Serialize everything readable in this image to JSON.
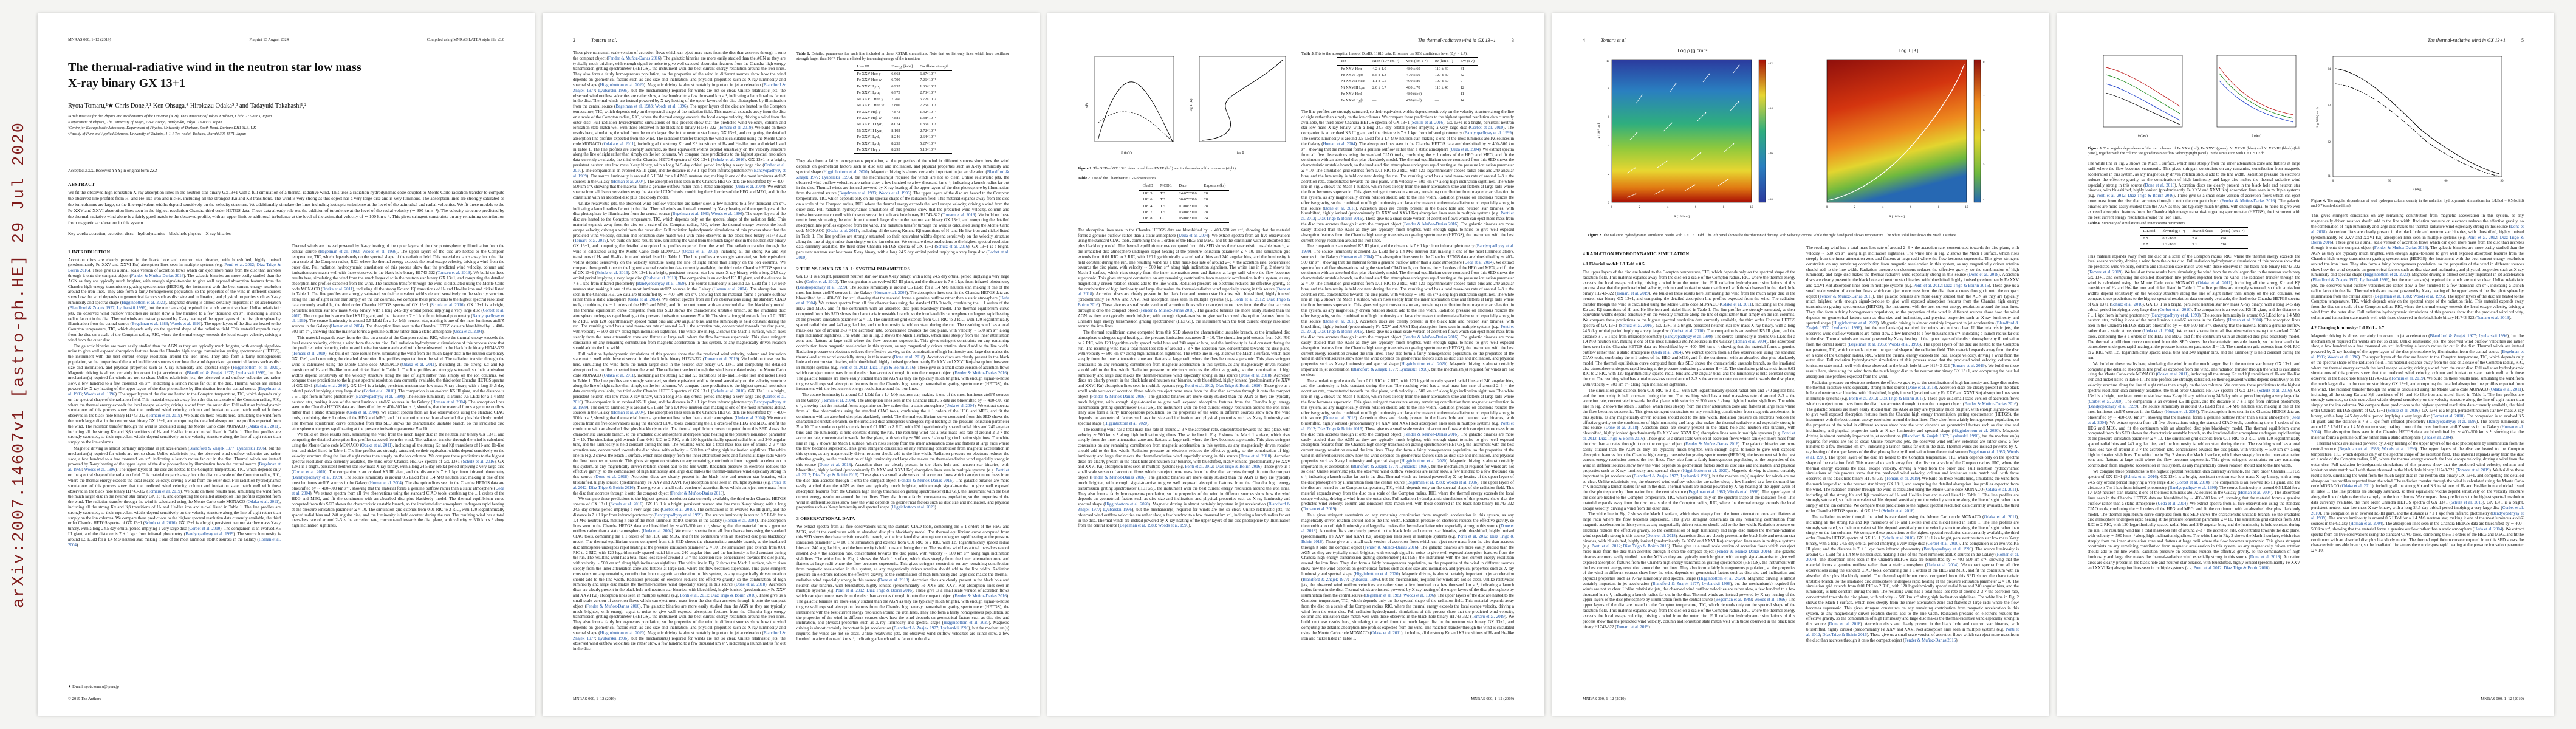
{
  "arxiv": {
    "stamp": "arXiv:2007.14607v1  [astro-ph.HE]  29 Jul 2020"
  },
  "masthead": {
    "journal_ref": "MNRAS 000, 1–12 (2019)",
    "preprint": "Preprint 13 August 2024",
    "compiled": "Compiled using MNRAS LATEX style file v3.0",
    "copyright": "© 2019 The Authors"
  },
  "running": {
    "even_title": "Tomaru et al.",
    "odd_title": "The thermal-radiative wind in GX 13+1",
    "p2": "2",
    "p3": "3",
    "p4": "4",
    "p5": "5"
  },
  "front": {
    "title": "The thermal-radiative wind in the neutron star low mass X-ray binary GX 13+1",
    "authors": "Ryota Tomaru,¹★ Chris Done,³,¹ Ken Ohsuga,⁴ Hirokazu Odaka⁵,³ and Tadayuki Takahashi¹,²",
    "affiliations": [
      "¹Kavli Institute for the Physics and Mathematics of the Universe (WPI), The University of Tokyo, Kashiwa, Chiba 277-8583, Japan",
      "²Department of Physics, The University of Tokyo, 7-3-1 Hongo, Bunkyo-ku, Tokyo 113-0033, Japan",
      "³Centre for Extragalactic Astronomy, Department of Physics, University of Durham, South Road, Durham DH1 3LE, UK",
      "⁴Faculty of Pure and Applied Sciences, University of Tsukuba, 1-1-1 Ten-nodai, Tsukuba, Ibaraki 305-8571, Japan"
    ],
    "dates": "Accepted XXX. Received YYY; in original form ZZZ",
    "abstract_heading": "ABSTRACT",
    "abstract": "We fit the observed high ionization X-ray absorption lines in the neutron star binary GX13+1 with a full simulation of a thermal-radiative wind. This uses a radiation hydrodynamic code coupled to Monte Carlo radiation transfer to compute the observed line profiles from H- and He-like iron and nickel, including all the strongest Kα and Kβ transitions. The wind is very strong as this object has a very large disc and is very luminous. The absorption lines are strongly saturated as the ion columns are large, so the line equivalent widths depend sensitively on the velocity structure. We additionally simulate the lines including isotropic turbulence at the level of the azimuthal and radial velocities. We fit these models to the Fe XXV and XXVI absorption lines seen in the highest resolution Chandra third order HETGS data. These data already rule out the addition of turbulence at the level of the radial velocity (∼ 900 km s⁻¹). The velocity structure predicted by the thermal-radiative wind alone is a fairly good match to the observed profile, with an upper limit to additional turbulence at the level of the azimuthal velocity of ∼ 100 km s⁻¹. This gives stringent constraints on any remaining contribution from magnetic acceleration in this system.",
    "keywords": "Key words: accretion, accretion discs – hydrodynamics – black hole physics – X-ray binaries",
    "footnote": "★ E-mail: ryota.tomaru@ipmu.jp"
  },
  "sections": {
    "s1": "1   INTRODUCTION",
    "s2": "2   THE NS LMXB GX 13+1: SYSTEM PARAMETERS",
    "s3": "3   OBSERVATIONAL DATA",
    "s4": "4   RADIATION HYDRODYNAMIC SIMULATION",
    "s41": "4.1   Fiducial model: L/LEdd = 0.5",
    "s42": "4.2   Changing luminosity: L/LEdd = 0.7"
  },
  "tables": {
    "t1": {
      "label": "Table 1.",
      "caption": "Detailed parameters for each line included in these XSTAR simulations. Note that we list only lines which have oscillator strength larger than 10⁻². These are listed by increasing energy of the transition.",
      "columns": [
        "Line ID",
        "Energy [keV]",
        "Oscillator strength"
      ],
      "rows": [
        [
          "Fe XXV Heα y",
          "6.668",
          "6.87×10⁻²"
        ],
        [
          "Fe XXV Heα w",
          "6.700",
          "7.26×10⁻¹"
        ],
        [
          "Fe XXVI Lyα₂",
          "6.952",
          "1.36×10⁻¹"
        ],
        [
          "Fe XXVI Lyα₁",
          "6.973",
          "2.73×10⁻¹"
        ],
        [
          "Ni XXVII Heα y",
          "7.766",
          "6.72×10⁻²"
        ],
        [
          "Ni XXVII Heα w",
          "7.806",
          "7.25×10⁻¹"
        ],
        [
          "Fe XXV Heβ y",
          "7.872",
          "1.42×10⁻²"
        ],
        [
          "Fe XXV Heβ w",
          "7.881",
          "1.38×10⁻¹"
        ],
        [
          "Ni XXVIII Lyα₂",
          "8.074",
          "1.36×10⁻¹"
        ],
        [
          "Ni XXVIII Lyα₁",
          "8.102",
          "2.72×10⁻¹"
        ],
        [
          "Fe XXVI Lyβ₂",
          "8.246",
          "2.64×10⁻²"
        ],
        [
          "Fe XXVI Lyβ₁",
          "8.253",
          "5.27×10⁻²"
        ],
        [
          "Fe XXV Heγ y",
          "8.295",
          "5.13×10⁻²"
        ]
      ]
    },
    "t2": {
      "label": "Table 2.",
      "caption": "List of the Chandra/HETGS observations.",
      "columns": [
        "ObsID",
        "MODE",
        "Date",
        "Exposure (ks)"
      ],
      "rows": [
        [
          "11815",
          "TE",
          "24/07/2010",
          "28"
        ],
        [
          "11816",
          "TE",
          "30/07/2010",
          "28"
        ],
        [
          "11814",
          "TE",
          "01/08/2010",
          "28"
        ],
        [
          "11817",
          "TE",
          "03/08/2010",
          "28"
        ],
        [
          "11818",
          "CC",
          "05/08/2010",
          "24"
        ]
      ]
    },
    "t3": {
      "label": "Table 3.",
      "caption": "Fits to the absorption lines of ObsID. 11818 data. Errors are the 90% confidence level (Δχ² = 2.7).",
      "columns": [
        "Ion",
        "Nion (10¹⁸ cm⁻²)",
        "vout (km s⁻¹)",
        "σv (km s⁻¹)",
        "EW (eV)"
      ],
      "rows": [
        [
          "Fe XXV Heα",
          "4.2 ± 1.0",
          "480 ± 60",
          "110 ± 40",
          "31"
        ],
        [
          "Fe XXVI Lyα",
          "8.5 ± 1.3",
          "470 ± 50",
          "120 ± 30",
          "42"
        ],
        [
          "Ni XXVII Heα",
          "1.1 ± 0.5",
          "490 ± 80",
          "100 ± 50",
          "9"
        ],
        [
          "Ni XXVIII Lyα",
          "2.0 ± 0.7",
          "480 ± 70",
          "110 ± 40",
          "12"
        ],
        [
          "Fe XXV Heβ",
          "—",
          "480 (tied)",
          "—",
          "11"
        ],
        [
          "Fe XXVI Lyβ",
          "—",
          "470 (tied)",
          "—",
          "14"
        ]
      ]
    },
    "t4": {
      "label": "Table 4.",
      "caption": "Summary of simulations and inner corona parameters.",
      "columns": [
        "L/LEdd",
        "Ṁwind (g s⁻¹)",
        "Ṁwind/Ṁacc",
        "⟨vout⟩ (km s⁻¹)"
      ],
      "rows": [
        [
          "0.5",
          "8.1×10¹⁸",
          "2.6",
          "420"
        ],
        [
          "0.7",
          "1.2×10¹⁹",
          "3.1",
          "510"
        ]
      ]
    }
  },
  "figures": {
    "f1": {
      "label": "Figure 1.",
      "caption": "The SED of GX 13+1 determined from RXTE (left) and its thermal equilibrium curve (right).",
      "xlabel_a": "E (keV)",
      "ylabel_a": "νFν",
      "xlabel_b": "log Ξ",
      "ylabel_b": "log T (K)"
    },
    "f2": {
      "label": "Figure 2.",
      "caption": "The radiation hydrodynamic simulation results with L = 0.5 LEdd. The left panel shows the distribution of density, with velocity vectors, while the right hand panel shows temperature. The white solid line shows the Mach 1 surface.",
      "left_title": "Log ρ [g cm⁻³]",
      "right_title": "Log T [K]",
      "axis_x": "R [10¹¹ cm]",
      "axis_y": "z [10¹¹ cm]",
      "x_ticks": [
        "0",
        "2",
        "4",
        "6",
        "8",
        "10"
      ],
      "y_ticks": [
        "0",
        "2",
        "4",
        "6",
        "8",
        "10"
      ],
      "rho_bar_ticks": [
        "−12",
        "−14",
        "−16",
        "−18"
      ],
      "T_bar_ticks": [
        "8",
        "7",
        "6",
        "5",
        "4"
      ]
    },
    "f3": {
      "label": "Figure 3.",
      "caption": "The angular dependence of the ion columns of Fe XXV (red), Fe XXVI (green), Ni XXVII (blue) and Ni XXVIII (black) (left panel), together with the column weighted mean outflow velocity (right panel), in the simulation with L = 0.5 LEdd.",
      "xlabel": "θ (deg)"
    },
    "f4": {
      "label": "Figure 4.",
      "caption": "The angular dependence of total hydrogen column density in the radiation hydrodynamic simulations for L/LEdd = 0.5 (solid) and 0.7 (dash-dotted line).",
      "xlabel": "θ (deg)",
      "ylabel": "log NH (cm⁻²)"
    }
  },
  "body_text": {
    "sentences": [
      "Accretion discs are clearly present in the black hole and neutron star binaries, with blueshifted, highly ionised (predominantly Fe XXV and XXVI Kα) absorption lines seen in multiple systems (e.g. [[Ponti et al. 2012]]; [[Díaz Trigo & Boirin 2016]]).",
      "These give us a small scale version of accretion flows which can eject more mass from the disc than accretes through it onto the compact object ([[Fender & Muñoz-Darias 2016]]).",
      "The galactic binaries are more easily studied than the AGN as they are typically much brighter, with enough signal-to-noise to give well exposed absorption features from the Chandra high energy transmission grating spectrometer (HETGS), the instrument with the best current energy resolution around the iron lines.",
      "They also form a fairly homogeneous population, so the properties of the wind in different sources show how the wind depends on geometrical factors such as disc size and inclination, and physical properties such as X-ray luminosity and spectral shape ([[Higginbottom et al. 2020]]).",
      "Magnetic driving is almost certainly important in jet acceleration ([[Blandford & Znajek 1977]]; [[Lyubarskii 1996]]), but the mechanism(s) required for winds are not so clear.",
      "Unlike relativistic jets, the observed wind outflow velocities are rather slow, a few hundred to a few thousand km s⁻¹, indicating a launch radius far out in the disc.",
      "Thermal winds are instead powered by X-ray heating of the upper layers of the disc photosphere by illumination from the central source ([[Begelman et al. 1983]]; [[Woods et al. 1996]]).",
      "The upper layers of the disc are heated to the Compton temperature, TIC, which depends only on the spectral shape of the radiation field.",
      "This material expands away from the disc on a scale of the Compton radius, RIC, where the thermal energy exceeds the local escape velocity, driving a wind from the outer disc.",
      "Full radiation hydrodynamic simulations of this process show that the predicted wind velocity, column and ionisation state match well with those observed in the black hole binary H1743-322 ([[Tomaru et al. 2019]]).",
      "We build on these results here, simulating the wind from the much larger disc in the neutron star binary GX 13+1, and computing the detailed absorption line profiles expected from the wind.",
      "The radiation transfer through the wind is calculated using the Monte Carlo code MONACO ([[Odaka et al. 2011]]), including all the strong Kα and Kβ transitions of H- and He-like iron and nickel listed in Table 1.",
      "The line profiles are strongly saturated, so their equivalent widths depend sensitively on the velocity structure along the line of sight rather than simply on the ion columns.",
      "We compare these predictions to the highest spectral resolution data currently available, the third order Chandra HETGS spectra of GX 13+1 ([[Schulz et al. 2016]]).",
      "GX 13+1 is a bright, persistent neutron star low mass X-ray binary, with a long 24.5 day orbital period implying a very large disc ([[Corbet et al. 2010]]).",
      "The companion is an evolved K5 III giant, and the distance is 7 ± 1 kpc from infrared photometry ([[Bandyopadhyay et al. 1999]]).",
      "The source luminosity is around 0.5 LEdd for a 1.4 M⊙ neutron star, making it one of the most luminous atoll/Z sources in the Galaxy ([[Homan et al. 2004]]).",
      "The absorption lines seen in the Chandra HETGS data are blueshifted by ∼ 400–500 km s⁻¹, showing that the material forms a genuine outflow rather than a static atmosphere ([[Ueda et al. 2004]]).",
      "We extract spectra from all five observations using the standard CIAO tools, combining the ± 1 orders of the HEG and MEG, and fit the continuum with an absorbed disc plus blackbody model.",
      "The thermal equilibrium curve computed from this SED shows the characteristic unstable branch, so the irradiated disc atmosphere undergoes rapid heating at the pressure ionisation parameter Ξ ≈ 10.",
      "The simulation grid extends from 0.01 RIC to 2 RIC, with 120 logarithmically spaced radial bins and 240 angular bins, and the luminosity is held constant during the run.",
      "The resulting wind has a total mass-loss rate of around 2–3 × the accretion rate, concentrated towards the disc plane, with velocity ∼ 500 km s⁻¹ along high inclination sightlines.",
      "The white line in Fig. 2 shows the Mach 1 surface, which rises steeply from the inner attenuation zone and flattens at large radii where the flow becomes supersonic.",
      "This gives stringent constraints on any remaining contribution from magnetic acceleration in this system, as any magnetically driven rotation should add to the line width.",
      "Radiation pressure on electrons reduces the effective gravity, so the combination of high luminosity and large disc makes the thermal-radiative wind especially strong in this source ([[Done et al. 2018]])."
    ]
  }
}
